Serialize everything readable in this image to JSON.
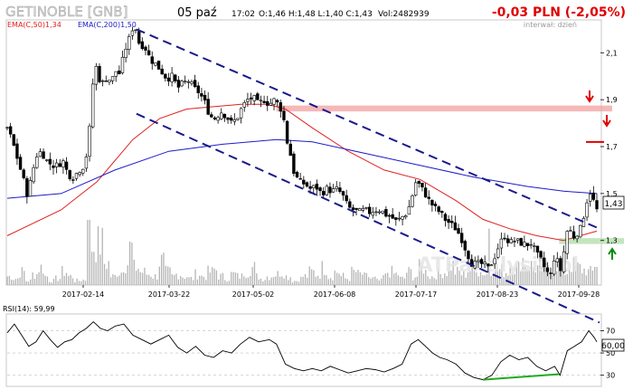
{
  "header": {
    "ticker": "GETINOBLE [GNB]",
    "date": "05 paź",
    "time": "17:02",
    "ohlc": "O:1,46 H:1,48 L:1,40 C:1,43",
    "volume": "Vol:2482939",
    "change": "-0,03 PLN (-2,05%)",
    "interval": "interwał: dzień",
    "watermark": "ATPanalysis.pl"
  },
  "legend": {
    "ema50": "EMA(C,50)1,34",
    "ema200": "EMA(C,200)1,50"
  },
  "colors": {
    "candles": "#000000",
    "ema50": "#e02020",
    "ema200": "#1c1cc8",
    "channel": "#1a1a8c",
    "resistance_zone": "#f2a0a0",
    "support_zone": "#b8e0b0",
    "volume": "#b4b4b4",
    "rsi_line": "#000000",
    "rsi_divergence": "#22aa22",
    "down_arrow": "#e00000",
    "up_arrow": "#0a8a0a",
    "change_text": "#e00000"
  },
  "labels": {
    "last_price": "1,43",
    "rsi_title": "RSI(14): 59,99",
    "rsi_last": "60,00"
  },
  "chart_data": [
    {
      "type": "candlestick",
      "title": "GETINOBLE [GNB]",
      "x_tick_labels": [
        "2017-02-14",
        "2017-03-22",
        "2017-05-02",
        "2017-06-08",
        "2017-07-17",
        "2017-08-23",
        "2017-09-28"
      ],
      "y_tick_labels": [
        "1,3",
        "1,5",
        "1,7",
        "1,9",
        "2,1"
      ],
      "ylim": [
        1.11,
        2.24
      ],
      "grid": false,
      "price_path": [
        [
          0,
          1.78
        ],
        [
          6,
          1.72
        ],
        [
          12,
          1.64
        ],
        [
          18,
          1.56
        ],
        [
          22,
          1.5
        ],
        [
          26,
          1.55
        ],
        [
          32,
          1.66
        ],
        [
          38,
          1.68
        ],
        [
          44,
          1.64
        ],
        [
          50,
          1.62
        ],
        [
          56,
          1.62
        ],
        [
          62,
          1.64
        ],
        [
          68,
          1.58
        ],
        [
          74,
          1.57
        ],
        [
          80,
          1.6
        ],
        [
          86,
          1.62
        ],
        [
          90,
          1.7
        ],
        [
          93,
          1.83
        ],
        [
          96,
          2.0
        ],
        [
          100,
          2.05
        ],
        [
          104,
          1.96
        ],
        [
          108,
          1.98
        ],
        [
          112,
          2.0
        ],
        [
          116,
          1.97
        ],
        [
          120,
          2.03
        ],
        [
          124,
          2.0
        ],
        [
          128,
          2.06
        ],
        [
          132,
          2.12
        ],
        [
          136,
          2.16
        ],
        [
          140,
          2.21
        ],
        [
          144,
          2.2
        ],
        [
          148,
          2.12
        ],
        [
          152,
          2.14
        ],
        [
          156,
          2.1
        ],
        [
          160,
          2.07
        ],
        [
          166,
          2.05
        ],
        [
          172,
          2.02
        ],
        [
          178,
          1.99
        ],
        [
          184,
          2.0
        ],
        [
          190,
          1.95
        ],
        [
          196,
          1.97
        ],
        [
          202,
          1.98
        ],
        [
          208,
          1.95
        ],
        [
          214,
          1.93
        ],
        [
          220,
          1.89
        ],
        [
          226,
          1.83
        ],
        [
          232,
          1.82
        ],
        [
          238,
          1.85
        ],
        [
          244,
          1.83
        ],
        [
          250,
          1.8
        ],
        [
          256,
          1.82
        ],
        [
          262,
          1.87
        ],
        [
          268,
          1.9
        ],
        [
          274,
          1.91
        ],
        [
          280,
          1.88
        ],
        [
          286,
          1.9
        ],
        [
          292,
          1.88
        ],
        [
          298,
          1.9
        ],
        [
          304,
          1.87
        ],
        [
          308,
          1.82
        ],
        [
          312,
          1.72
        ],
        [
          316,
          1.66
        ],
        [
          320,
          1.58
        ],
        [
          326,
          1.55
        ],
        [
          332,
          1.54
        ],
        [
          338,
          1.52
        ],
        [
          344,
          1.53
        ],
        [
          350,
          1.5
        ],
        [
          356,
          1.52
        ],
        [
          362,
          1.51
        ],
        [
          368,
          1.52
        ],
        [
          374,
          1.49
        ],
        [
          380,
          1.44
        ],
        [
          386,
          1.43
        ],
        [
          392,
          1.42
        ],
        [
          398,
          1.43
        ],
        [
          404,
          1.42
        ],
        [
          410,
          1.43
        ],
        [
          416,
          1.43
        ],
        [
          422,
          1.41
        ],
        [
          428,
          1.4
        ],
        [
          434,
          1.38
        ],
        [
          440,
          1.4
        ],
        [
          446,
          1.42
        ],
        [
          452,
          1.5
        ],
        [
          456,
          1.56
        ],
        [
          460,
          1.53
        ],
        [
          464,
          1.51
        ],
        [
          470,
          1.47
        ],
        [
          476,
          1.44
        ],
        [
          482,
          1.42
        ],
        [
          488,
          1.39
        ],
        [
          494,
          1.37
        ],
        [
          500,
          1.35
        ],
        [
          506,
          1.31
        ],
        [
          512,
          1.25
        ],
        [
          518,
          1.2
        ],
        [
          524,
          1.2
        ],
        [
          530,
          1.2
        ],
        [
          536,
          1.18
        ],
        [
          542,
          1.22
        ],
        [
          548,
          1.28
        ],
        [
          554,
          1.32
        ],
        [
          560,
          1.29
        ],
        [
          566,
          1.3
        ],
        [
          572,
          1.29
        ],
        [
          578,
          1.28
        ],
        [
          584,
          1.29
        ],
        [
          590,
          1.24
        ],
        [
          596,
          1.21
        ],
        [
          600,
          1.17
        ],
        [
          606,
          1.15
        ],
        [
          610,
          1.24
        ],
        [
          614,
          1.2
        ],
        [
          618,
          1.16
        ],
        [
          622,
          1.32
        ],
        [
          626,
          1.36
        ],
        [
          630,
          1.31
        ],
        [
          634,
          1.33
        ],
        [
          638,
          1.34
        ],
        [
          642,
          1.4
        ],
        [
          646,
          1.47
        ],
        [
          650,
          1.51
        ],
        [
          654,
          1.46
        ],
        [
          657,
          1.43
        ]
      ],
      "series": [
        {
          "name": "EMA(C,50)1,34",
          "points": [
            [
              0,
              1.32
            ],
            [
              60,
              1.43
            ],
            [
              100,
              1.55
            ],
            [
              140,
              1.73
            ],
            [
              170,
              1.82
            ],
            [
              200,
              1.86
            ],
            [
              230,
              1.87
            ],
            [
              260,
              1.88
            ],
            [
              290,
              1.88
            ],
            [
              310,
              1.86
            ],
            [
              340,
              1.78
            ],
            [
              380,
              1.68
            ],
            [
              420,
              1.6
            ],
            [
              460,
              1.56
            ],
            [
              500,
              1.47
            ],
            [
              530,
              1.39
            ],
            [
              560,
              1.35
            ],
            [
              590,
              1.32
            ],
            [
              620,
              1.3
            ],
            [
              657,
              1.34
            ]
          ]
        },
        {
          "name": "EMA(C,200)1,50",
          "points": [
            [
              0,
              1.48
            ],
            [
              60,
              1.5
            ],
            [
              120,
              1.6
            ],
            [
              180,
              1.68
            ],
            [
              240,
              1.71
            ],
            [
              300,
              1.73
            ],
            [
              340,
              1.72
            ],
            [
              400,
              1.67
            ],
            [
              460,
              1.62
            ],
            [
              520,
              1.57
            ],
            [
              580,
              1.53
            ],
            [
              620,
              1.51
            ],
            [
              657,
              1.5
            ]
          ]
        }
      ],
      "annotations": [
        {
          "type": "trend-channel-upper",
          "from": [
            144,
            2.2
          ],
          "to": [
            660,
            1.35
          ]
        },
        {
          "type": "trend-channel-lower",
          "from": [
            144,
            1.84
          ],
          "to": [
            660,
            0.95
          ]
        },
        {
          "type": "resistance-zone",
          "range": [
            1.85,
            1.875
          ]
        },
        {
          "type": "resistance-level",
          "value": 1.72
        },
        {
          "type": "support-zone",
          "range": [
            1.285,
            1.31
          ]
        }
      ],
      "volume_relative": [
        0.2,
        0.15,
        0.3,
        0.1,
        0.25,
        0.4,
        0.2,
        0.1,
        0.15,
        0.3,
        0.2,
        0.1,
        0.12,
        0.18,
        0.9,
        0.95,
        0.5,
        0.2,
        0.3,
        0.5,
        0.85,
        0.4,
        0.3,
        0.25,
        0.2,
        0.55,
        0.3,
        0.2,
        0.25,
        0.2,
        0.15,
        0.25,
        0.2,
        0.3,
        0.35,
        0.2,
        0.15,
        0.25,
        0.2,
        0.3,
        0.4,
        0.2,
        0.15,
        0.2,
        0.25,
        0.3,
        0.2,
        0.1,
        0.15,
        0.2,
        0.3,
        0.25,
        0.4,
        0.2,
        0.3,
        0.2,
        0.15,
        0.3,
        0.25,
        0.2,
        0.15,
        0.1,
        0.2,
        0.3,
        0.25,
        0.15,
        0.3,
        0.2,
        0.4,
        0.3,
        0.2,
        0.25,
        0.3,
        0.45,
        0.3,
        0.25,
        0.35,
        0.5,
        0.3,
        0.25,
        0.4,
        0.35,
        0.3,
        0.5,
        0.4,
        0.6,
        0.45,
        0.4,
        0.5,
        0.35,
        0.4,
        0.5,
        0.3,
        0.45,
        0.4,
        0.35,
        0.3,
        0.5
      ]
    },
    {
      "type": "line",
      "title": "RSI(14): 59,99",
      "y_tick_labels": [
        "30",
        "50",
        "70"
      ],
      "ylim": [
        20,
        85
      ],
      "grid": false,
      "series": [
        {
          "name": "RSI(14)",
          "points": [
            [
              0,
              68
            ],
            [
              8,
              76
            ],
            [
              16,
              66
            ],
            [
              24,
              56
            ],
            [
              32,
              60
            ],
            [
              40,
              70
            ],
            [
              48,
              62
            ],
            [
              56,
              55
            ],
            [
              64,
              60
            ],
            [
              72,
              62
            ],
            [
              80,
              68
            ],
            [
              88,
              72
            ],
            [
              96,
              78
            ],
            [
              104,
              72
            ],
            [
              112,
              70
            ],
            [
              120,
              74
            ],
            [
              130,
              76
            ],
            [
              140,
              66
            ],
            [
              150,
              62
            ],
            [
              160,
              58
            ],
            [
              170,
              62
            ],
            [
              180,
              66
            ],
            [
              190,
              55
            ],
            [
              200,
              50
            ],
            [
              210,
              56
            ],
            [
              220,
              48
            ],
            [
              230,
              46
            ],
            [
              240,
              52
            ],
            [
              250,
              50
            ],
            [
              260,
              58
            ],
            [
              270,
              64
            ],
            [
              280,
              60
            ],
            [
              292,
              62
            ],
            [
              300,
              58
            ],
            [
              310,
              40
            ],
            [
              320,
              36
            ],
            [
              330,
              34
            ],
            [
              340,
              36
            ],
            [
              350,
              34
            ],
            [
              360,
              38
            ],
            [
              370,
              35
            ],
            [
              380,
              32
            ],
            [
              390,
              34
            ],
            [
              400,
              36
            ],
            [
              410,
              35
            ],
            [
              420,
              33
            ],
            [
              430,
              36
            ],
            [
              440,
              40
            ],
            [
              450,
              58
            ],
            [
              458,
              62
            ],
            [
              466,
              56
            ],
            [
              474,
              50
            ],
            [
              482,
              46
            ],
            [
              490,
              44
            ],
            [
              500,
              40
            ],
            [
              510,
              32
            ],
            [
              520,
              28
            ],
            [
              530,
              26
            ],
            [
              540,
              30
            ],
            [
              550,
              42
            ],
            [
              560,
              48
            ],
            [
              570,
              44
            ],
            [
              580,
              46
            ],
            [
              590,
              38
            ],
            [
              600,
              34
            ],
            [
              610,
              38
            ],
            [
              616,
              30
            ],
            [
              624,
              52
            ],
            [
              632,
              56
            ],
            [
              640,
              60
            ],
            [
              648,
              70
            ],
            [
              654,
              64
            ],
            [
              657,
              60
            ]
          ]
        }
      ],
      "annotations": [
        {
          "type": "bullish-divergence",
          "from": [
            530,
            26
          ],
          "to": [
            615,
            31
          ]
        }
      ]
    }
  ]
}
